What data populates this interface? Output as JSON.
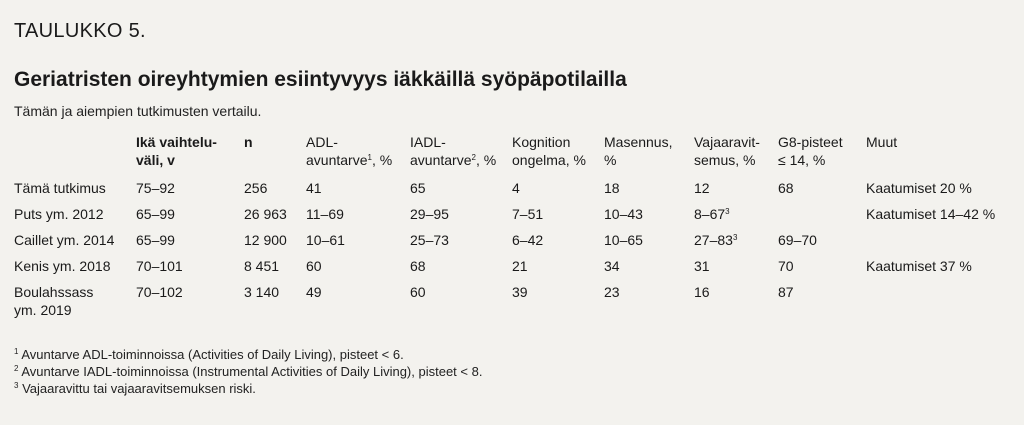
{
  "label": "TAULUKKO 5.",
  "title": "Geriatristen oireyhtymien esiintyvyys iäkkäillä syöpäpotilailla",
  "subtitle": "Tämän ja aiempien tutkimusten vertailu.",
  "table": {
    "headers": [
      {
        "text": "",
        "sup": ""
      },
      {
        "text": "Ikä vaihtelu-\nväli, v",
        "sup": ""
      },
      {
        "text": "n",
        "sup": ""
      },
      {
        "text": "ADL-\navuntarve",
        "sup": "1",
        "after": ", %"
      },
      {
        "text": "IADL-\navuntarve",
        "sup": "2",
        "after": ", %"
      },
      {
        "text": "Kognition\nongelma, %",
        "sup": ""
      },
      {
        "text": "Masennus,\n%",
        "sup": ""
      },
      {
        "text": "Vajaaravit-\nsemus, %",
        "sup": ""
      },
      {
        "text": "G8-pisteet\n≤ 14, %",
        "sup": ""
      },
      {
        "text": "Muut",
        "sup": ""
      }
    ],
    "rows": [
      {
        "cells": [
          "Tämä tutkimus",
          "75–92",
          "256",
          "41",
          "65",
          "4",
          "18",
          "12",
          "68",
          "Kaatumiset 20 %"
        ],
        "sup7": ""
      },
      {
        "cells": [
          "Puts ym. 2012",
          "65–99",
          "26 963",
          "11–69",
          "29–95",
          "7–51",
          "10–43",
          "8–67",
          "",
          "Kaatumiset 14–42 %"
        ],
        "sup7": "3"
      },
      {
        "cells": [
          "Caillet ym. 2014",
          "65–99",
          "12 900",
          "10–61",
          "25–73",
          "6–42",
          "10–65",
          "27–83",
          "69–70",
          ""
        ],
        "sup7": "3"
      },
      {
        "cells": [
          "Kenis ym. 2018",
          "70–101",
          "8 451",
          "60",
          "68",
          "21",
          "34",
          "31",
          "70",
          "Kaatumiset 37 %"
        ],
        "sup7": ""
      },
      {
        "cells": [
          "Boulahssass\nym. 2019",
          "70–102",
          "3 140",
          "49",
          "60",
          "39",
          "23",
          "16",
          "87",
          ""
        ],
        "sup7": ""
      }
    ]
  },
  "footnotes": [
    {
      "num": "1",
      "text": "Avuntarve ADL-toiminnoissa (Activities of Daily Living), pisteet < 6."
    },
    {
      "num": "2",
      "text": "Avuntarve IADL-toiminnoissa (Instrumental Activities of Daily Living), pisteet < 8."
    },
    {
      "num": "3",
      "text": "Vajaaravittu tai vajaaravitsemuksen riski."
    }
  ]
}
